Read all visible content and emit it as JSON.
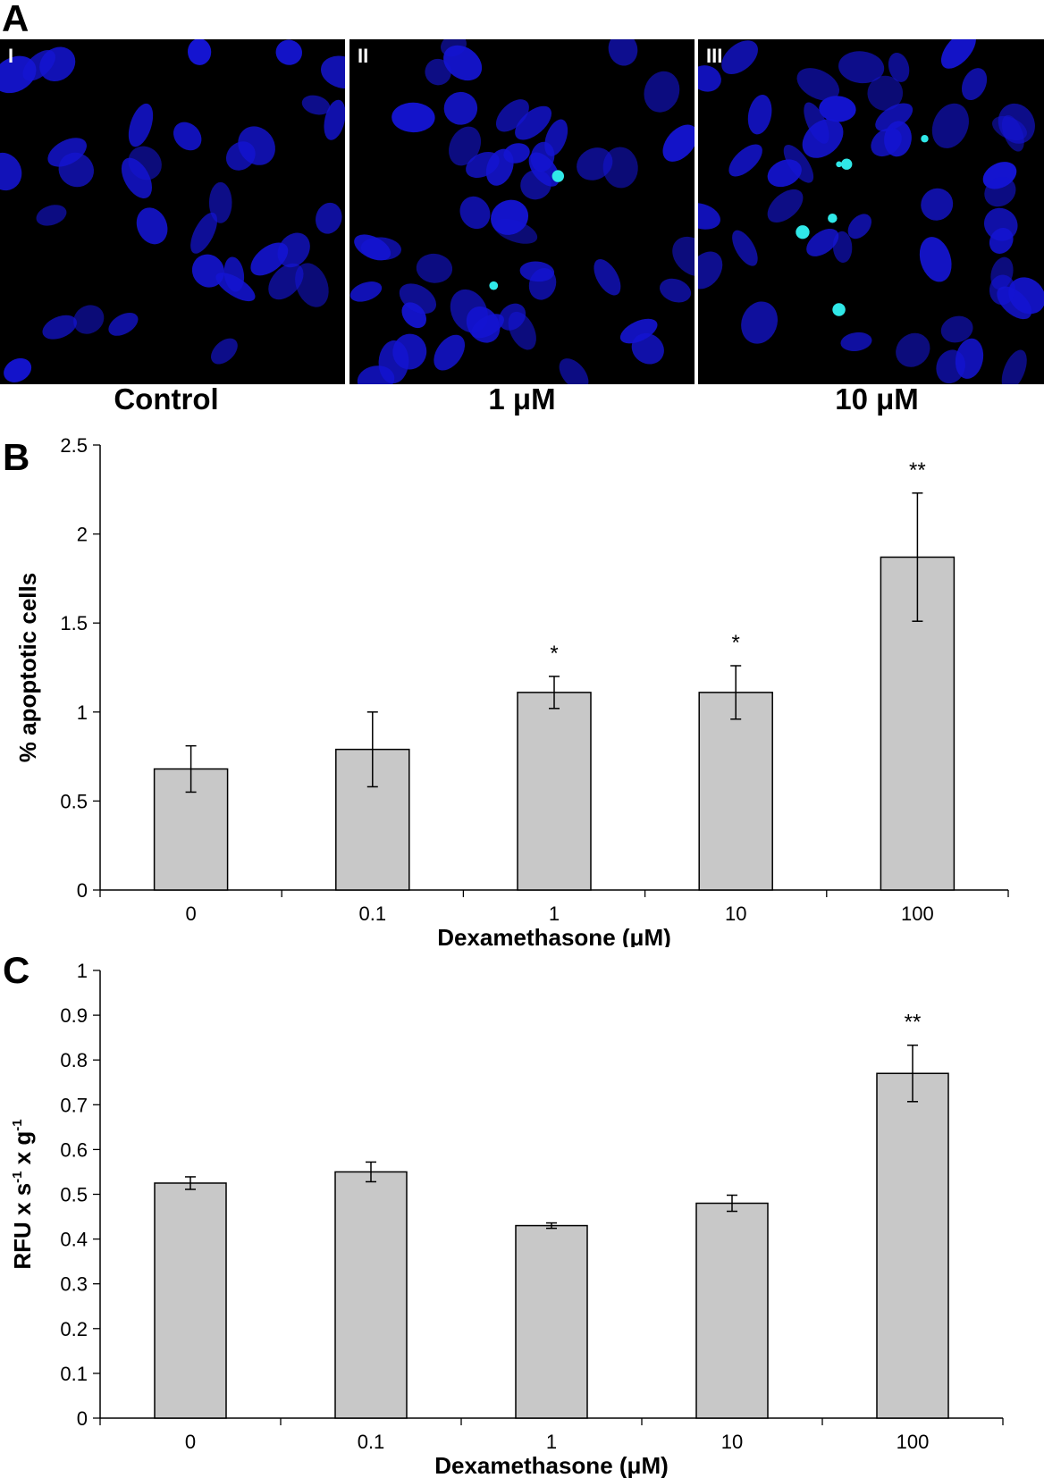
{
  "panel_a": {
    "letter": "A",
    "images": [
      {
        "numeral": "I",
        "caption": "Control"
      },
      {
        "numeral": "II",
        "caption": "1 μM"
      },
      {
        "numeral": "III",
        "caption": "10 μM"
      }
    ],
    "colors": {
      "background": "#000000",
      "nuclei": "#1414d2",
      "apoptotic_stain": "#30e8e8"
    }
  },
  "chart_data": [
    {
      "panel": "B",
      "type": "bar",
      "categories": [
        "0",
        "0.1",
        "1",
        "10",
        "100"
      ],
      "values": [
        0.68,
        0.79,
        1.11,
        1.11,
        1.87
      ],
      "errors": [
        0.13,
        0.21,
        0.09,
        0.15,
        0.36
      ],
      "significance": [
        "",
        "",
        "*",
        "*",
        "**"
      ],
      "xlabel": "Dexamethasone (μM)",
      "ylabel": "% apoptotic cells",
      "ylim": [
        0,
        2.5
      ],
      "yticks": [
        "0",
        "0.5",
        "1",
        "1.5",
        "2",
        "2.5"
      ],
      "ytick_values": [
        0,
        0.5,
        1,
        1.5,
        2,
        2.5
      ],
      "bar_color": "#c8c8c8",
      "grid": false,
      "legend": "none"
    },
    {
      "panel": "C",
      "type": "bar",
      "categories": [
        "0",
        "0.1",
        "1",
        "10",
        "100"
      ],
      "values": [
        0.525,
        0.55,
        0.43,
        0.48,
        0.77
      ],
      "errors": [
        0.014,
        0.022,
        0.006,
        0.018,
        0.063
      ],
      "significance": [
        "",
        "",
        "",
        "",
        "**"
      ],
      "xlabel": "Dexamethasone (μM)",
      "ylabel": "RFU x s-1 x g-1",
      "ylabel_parts": {
        "base1": "RFU x s",
        "sup1": "-1",
        "base2": " x g",
        "sup2": "-1"
      },
      "ylim": [
        0,
        1
      ],
      "yticks": [
        "0",
        "0.1",
        "0.2",
        "0.3",
        "0.4",
        "0.5",
        "0.6",
        "0.7",
        "0.8",
        "0.9",
        "1"
      ],
      "ytick_values": [
        0,
        0.1,
        0.2,
        0.3,
        0.4,
        0.5,
        0.6,
        0.7,
        0.8,
        0.9,
        1
      ],
      "bar_color": "#c8c8c8",
      "grid": false,
      "legend": "none"
    }
  ]
}
